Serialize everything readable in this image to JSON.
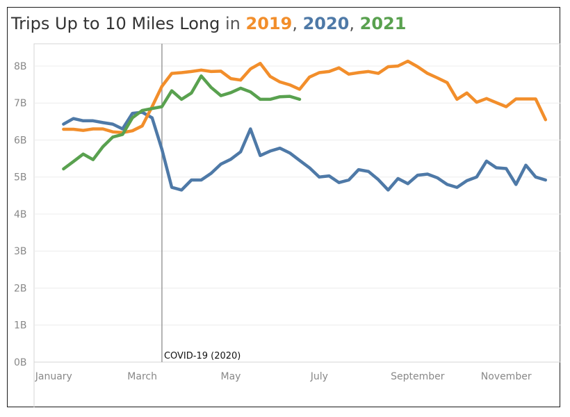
{
  "header": {
    "title_prefix": "Trips Up to 10 Miles Long",
    "title_in": " in ",
    "year_2019": "2019",
    "sep1": ", ",
    "year_2020": "2020",
    "sep2": ", ",
    "year_2021": "2021"
  },
  "annotation": {
    "label": "COVID-19 (2020)",
    "week_index": 10
  },
  "colors": {
    "2019": "#f28e2b",
    "2020": "#4e79a7",
    "2021": "#59a14f",
    "grid": "#ececec",
    "refline": "#9a9a9a"
  },
  "chart_data": {
    "type": "line",
    "title": "Trips Up to 10 Miles Long in 2019, 2020, 2021",
    "xlabel": "",
    "ylabel": "",
    "ylim": [
      0,
      8.6
    ],
    "y_unit": "billions of trips",
    "yticks": [
      0,
      1,
      2,
      3,
      4,
      5,
      6,
      7,
      8
    ],
    "ytick_labels": [
      "0B",
      "1B",
      "2B",
      "3B",
      "4B",
      "5B",
      "6B",
      "7B",
      "8B"
    ],
    "x_unit": "week of year",
    "xlim": [
      -3,
      50.5
    ],
    "xticks": [
      {
        "label": "January",
        "week": -1
      },
      {
        "label": "March",
        "week": 8
      },
      {
        "label": "May",
        "week": 17
      },
      {
        "label": "July",
        "week": 26
      },
      {
        "label": "September",
        "week": 36
      },
      {
        "label": "November",
        "week": 45
      }
    ],
    "grid": true,
    "series": [
      {
        "name": "2019",
        "x": [
          0,
          1,
          2,
          3,
          4,
          5,
          6,
          7,
          8,
          9,
          10,
          11,
          12,
          13,
          14,
          15,
          16,
          17,
          18,
          19,
          20,
          21,
          22,
          23,
          24,
          25,
          26,
          27,
          28,
          29,
          30,
          31,
          32,
          33,
          34,
          35,
          36,
          37,
          38,
          39,
          40,
          41,
          42,
          43,
          44,
          45,
          46,
          47,
          48,
          49
        ],
        "values": [
          6.29,
          6.29,
          6.26,
          6.3,
          6.3,
          6.22,
          6.2,
          6.25,
          6.38,
          6.9,
          7.45,
          7.8,
          7.82,
          7.85,
          7.89,
          7.85,
          7.86,
          7.66,
          7.62,
          7.92,
          8.07,
          7.72,
          7.57,
          7.49,
          7.37,
          7.7,
          7.82,
          7.85,
          7.95,
          7.78,
          7.82,
          7.85,
          7.8,
          7.98,
          8.0,
          8.13,
          7.98,
          7.8,
          7.68,
          7.55,
          7.1,
          7.27,
          7.02,
          7.12,
          7.01,
          6.9,
          7.11,
          7.11,
          7.11,
          6.55
        ]
      },
      {
        "name": "2020",
        "x": [
          0,
          1,
          2,
          3,
          4,
          5,
          6,
          7,
          8,
          9,
          10,
          11,
          12,
          13,
          14,
          15,
          16,
          17,
          18,
          19,
          20,
          21,
          22,
          23,
          24,
          25,
          26,
          27,
          28,
          29,
          30,
          31,
          32,
          33,
          34,
          35,
          36,
          37,
          38,
          39,
          40,
          41,
          42,
          43,
          44,
          45,
          46,
          47,
          48,
          49
        ],
        "values": [
          6.43,
          6.58,
          6.52,
          6.52,
          6.47,
          6.43,
          6.3,
          6.72,
          6.75,
          6.6,
          5.75,
          4.72,
          4.65,
          4.92,
          4.92,
          5.1,
          5.35,
          5.48,
          5.68,
          6.3,
          5.58,
          5.7,
          5.78,
          5.65,
          5.45,
          5.25,
          5.0,
          5.03,
          4.85,
          4.92,
          5.2,
          5.15,
          4.93,
          4.65,
          4.96,
          4.82,
          5.05,
          5.08,
          4.98,
          4.8,
          4.72,
          4.9,
          5.0,
          5.43,
          5.25,
          5.23,
          4.8,
          5.32,
          5.0,
          4.92
        ]
      },
      {
        "name": "2021",
        "x": [
          0,
          1,
          2,
          3,
          4,
          5,
          6,
          7,
          8,
          9,
          10,
          11,
          12,
          13,
          14,
          15,
          16,
          17,
          18,
          19,
          20,
          21,
          22,
          23,
          24
        ],
        "values": [
          5.22,
          5.42,
          5.62,
          5.47,
          5.82,
          6.08,
          6.15,
          6.6,
          6.8,
          6.85,
          6.9,
          7.33,
          7.1,
          7.27,
          7.73,
          7.42,
          7.2,
          7.28,
          7.4,
          7.3,
          7.1,
          7.1,
          7.17,
          7.18,
          7.1
        ]
      }
    ]
  }
}
